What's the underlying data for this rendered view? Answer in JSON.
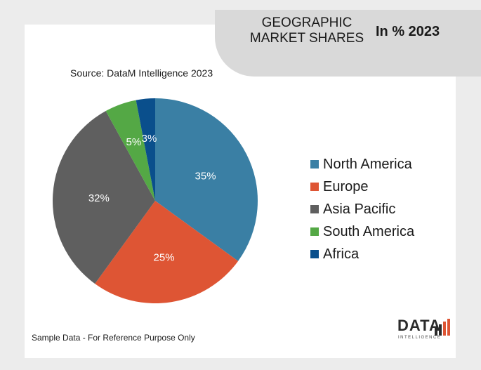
{
  "header": {
    "title_line1": "GEOGRAPHIC",
    "title_line2": "MARKET SHARES",
    "year_label": "In % 2023"
  },
  "source": "Source: DataM Intelligence  2023",
  "footnote": "Sample Data - For Reference Purpose Only",
  "logo": {
    "text": "DATA",
    "subtext": "INTELLIGENCE"
  },
  "chart_data": {
    "type": "pie",
    "categories": [
      "North America",
      "Europe",
      "Asia Pacific",
      "South America",
      "Africa"
    ],
    "values": [
      35,
      25,
      32,
      5,
      3
    ],
    "labels": [
      "35%",
      "25%",
      "32%",
      "5%",
      "3%"
    ],
    "colors": [
      "#3a7fa4",
      "#de5534",
      "#5f5f5f",
      "#54a845",
      "#0a4f8c"
    ],
    "legend_position": "right"
  }
}
